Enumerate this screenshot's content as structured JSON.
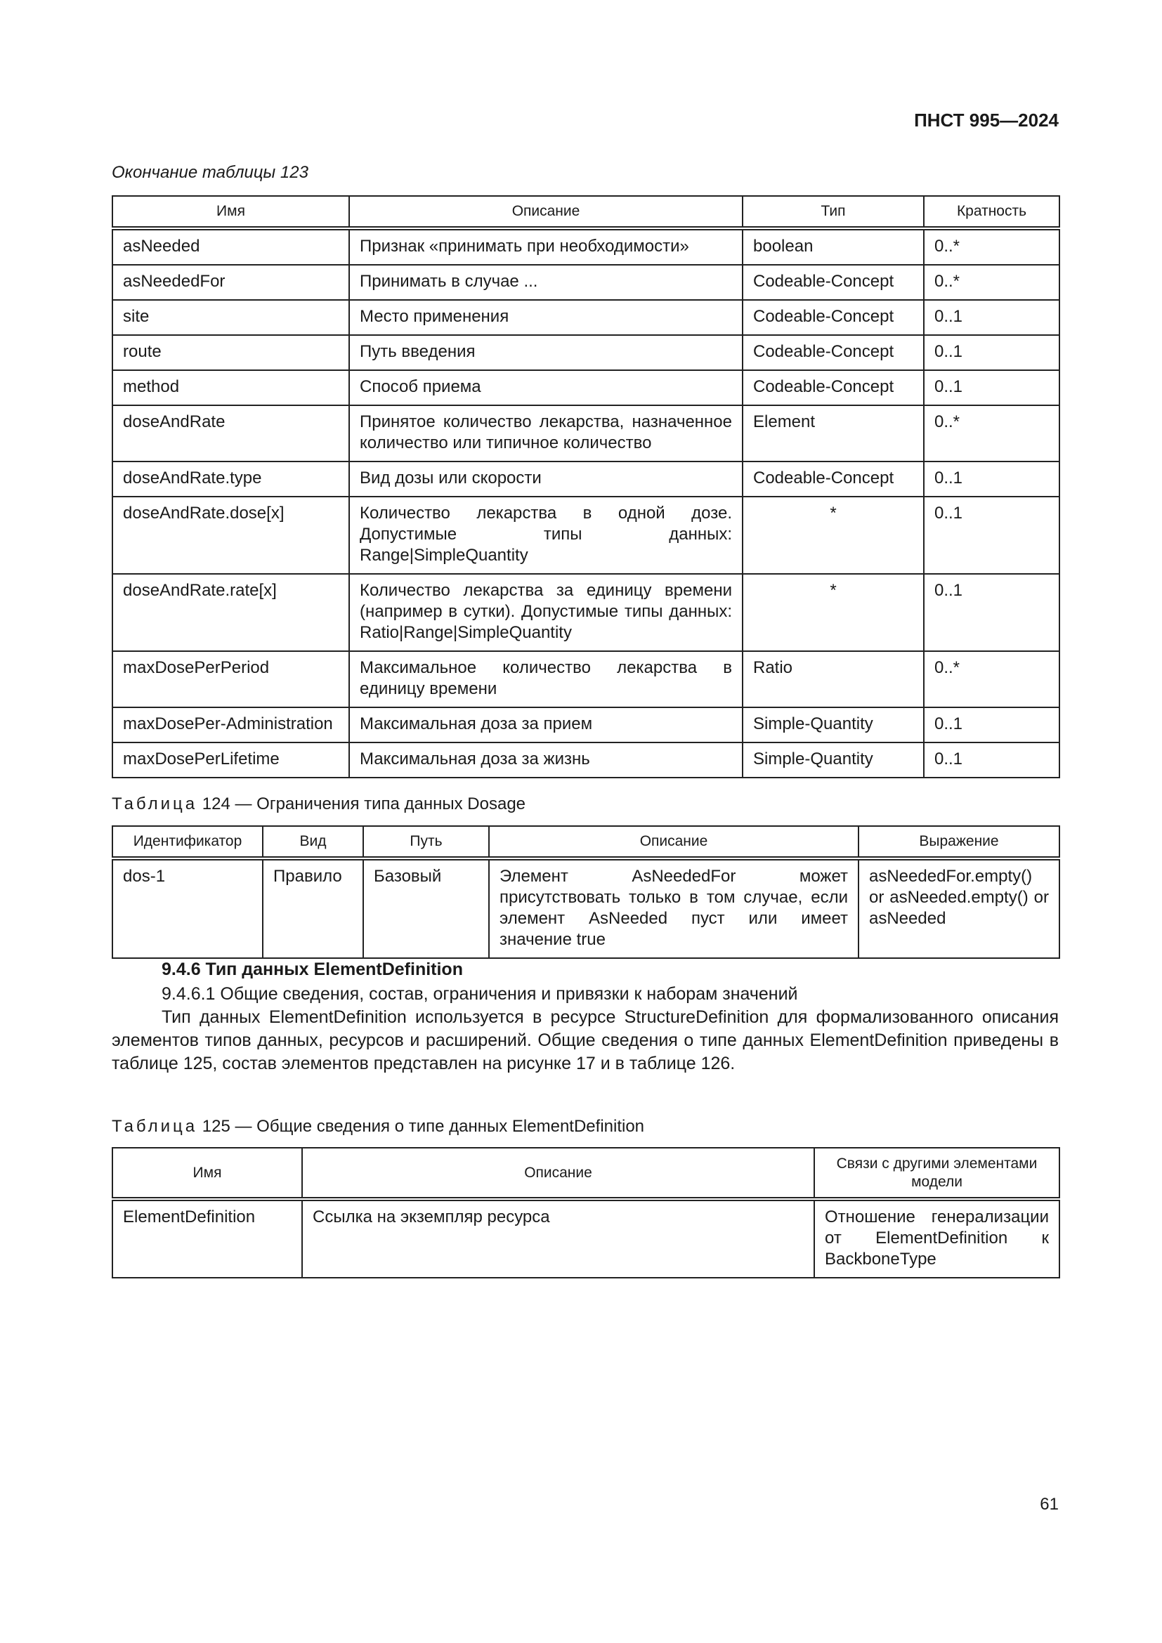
{
  "header": {
    "doc_code": "ПНСТ 995—2024"
  },
  "table123": {
    "caption": "Окончание таблицы 123",
    "columns": [
      "Имя",
      "Описание",
      "Тип",
      "Кратность"
    ],
    "rows": [
      [
        "asNeeded",
        "Признак «принимать при необходимости»",
        "boolean",
        "0..*"
      ],
      [
        "asNeededFor",
        "Принимать в случае ...",
        "Codeable-Concept",
        "0..*"
      ],
      [
        "site",
        "Место применения",
        "Codeable-Concept",
        "0..1"
      ],
      [
        "route",
        "Путь введения",
        "Codeable-Concept",
        "0..1"
      ],
      [
        "method",
        "Способ приема",
        "Codeable-Concept",
        "0..1"
      ],
      [
        "doseAndRate",
        "Принятое количество лекарства, назначенное количество или типичное количество",
        "Element",
        "0..*"
      ],
      [
        "doseAndRate.type",
        "Вид дозы или скорости",
        "Codeable-Concept",
        "0..1"
      ],
      [
        "doseAndRate.dose[x]",
        "Количество лекарства в одной дозе. Допустимые типы данных: Range|SimpleQuantity",
        "*",
        "0..1"
      ],
      [
        "doseAndRate.rate[x]",
        "Количество лекарства за единицу времени (например в сутки). Допустимые типы данных: Ratio|Range|SimpleQuantity",
        "*",
        "0..1"
      ],
      [
        "maxDosePerPeriod",
        "Максимальное количество лекарства в единицу времени",
        "Ratio",
        "0..*"
      ],
      [
        "maxDosePer-Administration",
        "Максимальная доза за прием",
        "Simple-Quantity",
        "0..1"
      ],
      [
        "maxDosePerLifetime",
        "Максимальная доза за жизнь",
        "Simple-Quantity",
        "0..1"
      ]
    ]
  },
  "table124": {
    "caption_prefix": "Таблица",
    "caption": "124 — Ограничения типа данных Dosage",
    "columns": [
      "Идентификатор",
      "Вид",
      "Путь",
      "Описание",
      "Выражение"
    ],
    "rows": [
      [
        "dos-1",
        "Правило",
        "Базовый",
        "Элемент AsNeededFor может присутствовать только в том случае, если элемент AsNeeded пуст или имеет значение true",
        "asNeededFor.empty() or asNeeded.empty() or asNeeded"
      ]
    ]
  },
  "section": {
    "heading": "9.4.6 Тип данных ElementDefinition",
    "subheading": "9.4.6.1 Общие сведения, состав, ограничения и привязки к наборам значений",
    "paragraph": "Тип данных ElementDefinition используется в ресурсе StructureDefinition для формализованного описания элементов типов данных, ресурсов и расширений. Общие сведения о типе данных ElementDefinition приведены в таблице 125, состав элементов представлен на рисунке 17 и в таблице 126."
  },
  "table125": {
    "caption_prefix": "Таблица",
    "caption": "125 — Общие сведения о типе данных ElementDefinition",
    "columns": [
      "Имя",
      "Описание",
      "Связи с другими элементами модели"
    ],
    "rows": [
      [
        "ElementDefinition",
        "Ссылка на экземпляр ресурса",
        "Отношение генерализации от ElementDefinition к BackboneType"
      ]
    ]
  },
  "footer": {
    "page_number": "61"
  }
}
